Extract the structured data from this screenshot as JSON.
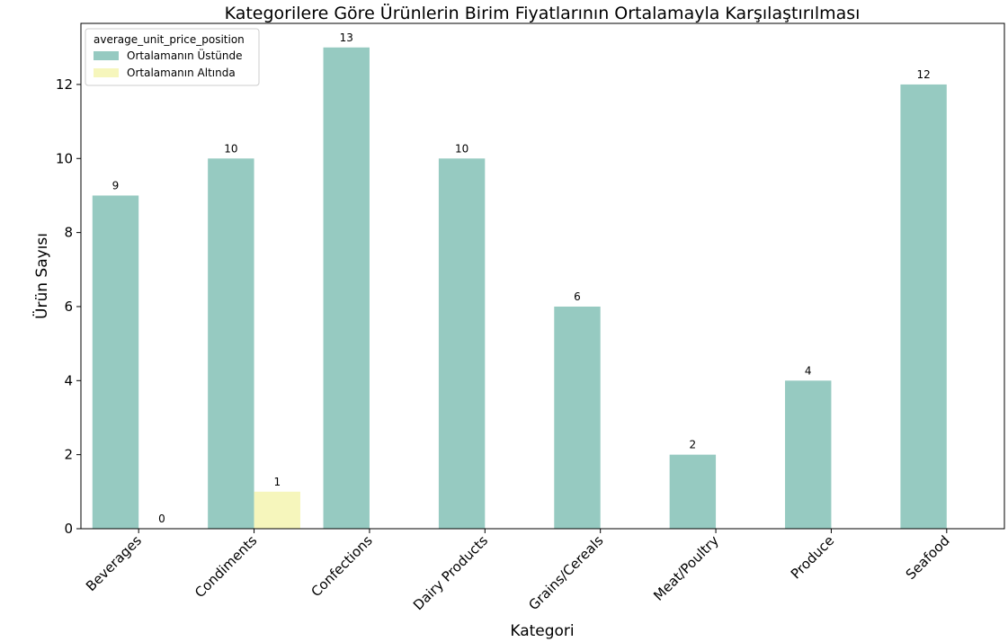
{
  "chart_data": {
    "type": "bar",
    "title": "Kategorilere Göre Ürünlerin Birim Fiyatlarının Ortalamayla Karşılaştırılması",
    "xlabel": "Kategori",
    "ylabel": "Ürün Sayısı",
    "ylim": [
      0,
      13.65
    ],
    "yticks": [
      "0",
      "2",
      "4",
      "6",
      "8",
      "10",
      "12"
    ],
    "grid": false,
    "legend": {
      "title": "average_unit_price_position",
      "placement": "top-left"
    },
    "categories": [
      "Beverages",
      "Condiments",
      "Confections",
      "Dairy Products",
      "Grains/Cereals",
      "Meat/Poultry",
      "Produce",
      "Seafood"
    ],
    "series": [
      {
        "name": "Ortalamanın Üstünde",
        "color": "#96cac1",
        "values": [
          9,
          10,
          13,
          10,
          6,
          2,
          4,
          12
        ],
        "labels": [
          "9",
          "10",
          "13",
          "10",
          "6",
          "2",
          "4",
          "12"
        ]
      },
      {
        "name": "Ortalamanın Altında",
        "color": "#f6f6bc",
        "values": [
          0,
          1,
          0,
          0,
          0,
          0,
          0,
          0
        ],
        "labels": [
          "0",
          "1",
          "",
          "",
          "",
          "",
          "",
          ""
        ]
      }
    ]
  }
}
